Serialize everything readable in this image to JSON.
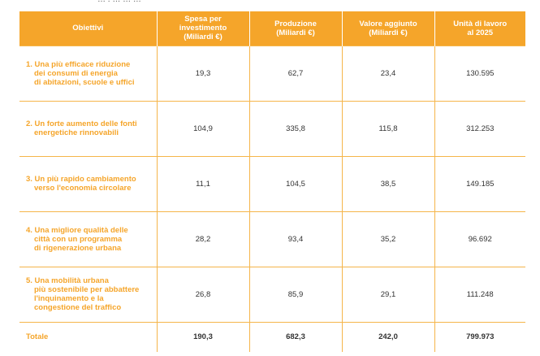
{
  "top_fragment": "… . … … …",
  "table": {
    "headers": [
      {
        "lines": [
          "Obiettivi"
        ]
      },
      {
        "lines": [
          "Spesa per investimento",
          "(Miliardi €)"
        ]
      },
      {
        "lines": [
          "Produzione",
          "(Miliardi €)"
        ]
      },
      {
        "lines": [
          "Valore aggiunto",
          "(Miliardi €)"
        ]
      },
      {
        "lines": [
          "Unità di lavoro",
          "al 2025"
        ]
      }
    ],
    "rows": [
      {
        "label_first": "1. Una più efficace riduzione",
        "label_rest": [
          "dei consumi di energia",
          "di abitazioni, scuole e uffici"
        ],
        "values": [
          "19,3",
          "62,7",
          "23,4",
          "130.595"
        ]
      },
      {
        "label_first": "2. Un forte aumento delle fonti",
        "label_rest": [
          "energetiche rinnovabili"
        ],
        "values": [
          "104,9",
          "335,8",
          "115,8",
          "312.253"
        ]
      },
      {
        "label_first": "3. Un più rapido cambiamento",
        "label_rest": [
          "verso l'economia circolare"
        ],
        "values": [
          "11,1",
          "104,5",
          "38,5",
          "149.185"
        ]
      },
      {
        "label_first": "4. Una migliore qualità delle",
        "label_rest": [
          "città con un programma",
          "di rigenerazione urbana"
        ],
        "values": [
          "28,2",
          "93,4",
          "35,2",
          "96.692"
        ]
      },
      {
        "label_first": "5. Una mobilità urbana",
        "label_rest": [
          "più sostenibile per abbattere",
          "l'inquinamento e la",
          "congestione del traffico"
        ],
        "values": [
          "26,8",
          "85,9",
          "29,1",
          "111.248"
        ]
      }
    ],
    "total": {
      "label": "Totale",
      "values": [
        "190,3",
        "682,3",
        "242,0",
        "799.973"
      ]
    }
  },
  "colors": {
    "accent": "#f5a52a",
    "text": "#333333",
    "header_text": "#ffffff"
  }
}
